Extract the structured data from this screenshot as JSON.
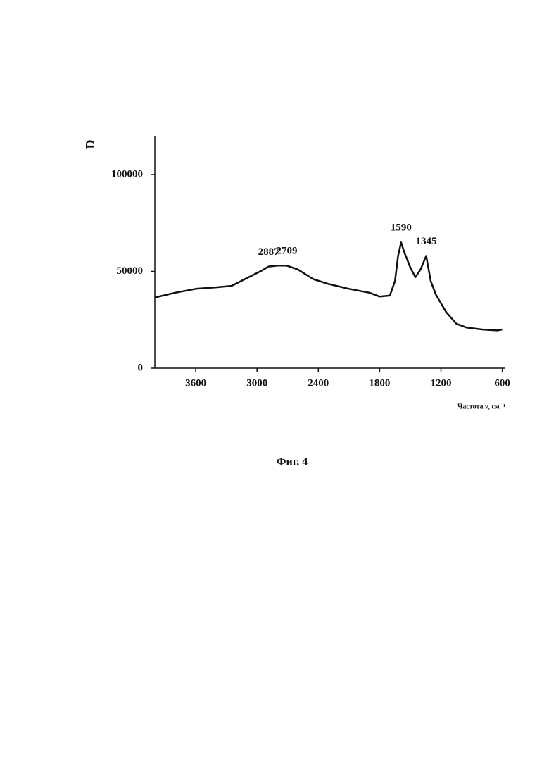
{
  "chart_data": {
    "type": "line",
    "y_label": "D",
    "x_label": "Частота ν, см⁻¹",
    "caption": "Фиг. 4",
    "x": [
      4000,
      3800,
      3600,
      3400,
      3250,
      3100,
      2950,
      2887,
      2800,
      2709,
      2600,
      2450,
      2300,
      2100,
      1900,
      1800,
      1700,
      1650,
      1620,
      1590,
      1560,
      1500,
      1450,
      1400,
      1345,
      1300,
      1250,
      1150,
      1050,
      950,
      800,
      650,
      600
    ],
    "series": [
      {
        "color": "#111111",
        "values": [
          36500,
          39000,
          41000,
          41800,
          42500,
          46500,
          50500,
          52500,
          53000,
          53000,
          51000,
          46000,
          43500,
          41000,
          39000,
          37000,
          37500,
          45000,
          58000,
          65000,
          60000,
          52000,
          47000,
          51000,
          58000,
          45000,
          38000,
          29000,
          23000,
          21000,
          20000,
          19500,
          20000
        ]
      }
    ],
    "annotations": [
      2887,
      2709,
      1590,
      1345
    ],
    "xlim": [
      4000,
      570
    ],
    "xticks": [
      3600,
      3000,
      2400,
      1800,
      1200,
      600
    ],
    "ylim": [
      0,
      120000
    ],
    "yticks": [
      0,
      50000,
      100000
    ]
  }
}
